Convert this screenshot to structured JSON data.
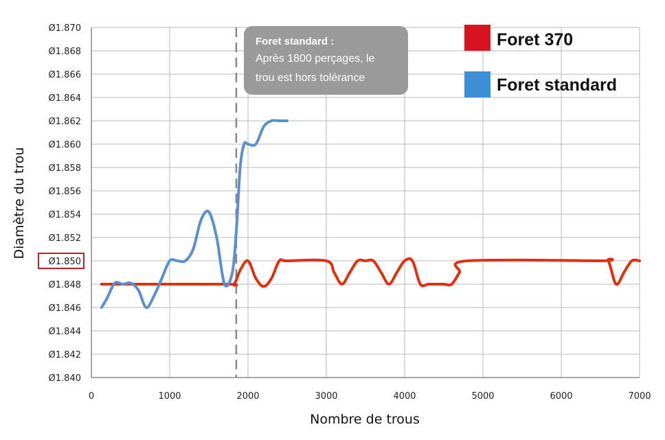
{
  "chart_data": {
    "type": "line",
    "xlabel": "Nombre de trous",
    "ylabel": "Diamètre du trou",
    "xlim": [
      0,
      7000
    ],
    "ylim": [
      1.84,
      1.87
    ],
    "x_ticks": [
      "0",
      "1000",
      "2000",
      "3000",
      "4000",
      "5000",
      "6000",
      "7000"
    ],
    "y_ticks": [
      "Ø1.840",
      "Ø1.842",
      "Ø1.844",
      "Ø1.846",
      "Ø1.848",
      "Ø1.850",
      "Ø1.852",
      "Ø1.854",
      "Ø1.856",
      "Ø1.858",
      "Ø1.860",
      "Ø1.862",
      "Ø1.864",
      "Ø1.866",
      "Ø1.868",
      "Ø1.870"
    ],
    "highlighted_y_tick": "Ø1.850",
    "grid": true,
    "legend_position": "top-right",
    "vline_x": 1850,
    "annotation": {
      "title": "Foret standard :",
      "lines": [
        "Après 1800 perçages, le",
        "trou est hors tolérance"
      ]
    },
    "series": [
      {
        "name": "Foret 370",
        "color": "#e03010",
        "x": [
          130,
          1700,
          1820,
          1900,
          2000,
          2100,
          2200,
          2300,
          2400,
          2500,
          3000,
          3100,
          3200,
          3300,
          3400,
          3500,
          3600,
          3700,
          3800,
          3900,
          4000,
          4100,
          4200,
          4300,
          4400,
          4500,
          4600,
          4700,
          4800,
          6500,
          6600,
          6700,
          6800,
          6900,
          7000
        ],
        "values": [
          1.848,
          1.848,
          1.848,
          1.8492,
          1.85,
          1.8485,
          1.8478,
          1.8485,
          1.85,
          1.85,
          1.85,
          1.849,
          1.848,
          1.849,
          1.85,
          1.85,
          1.85,
          1.849,
          1.848,
          1.849,
          1.85,
          1.85,
          1.848,
          1.848,
          1.848,
          1.848,
          1.848,
          1.849,
          1.85,
          1.85,
          1.85,
          1.848,
          1.849,
          1.85,
          1.85
        ]
      },
      {
        "name": "Foret standard",
        "color": "#5b8fd2",
        "x": [
          130,
          200,
          300,
          400,
          500,
          600,
          700,
          800,
          900,
          1000,
          1100,
          1200,
          1300,
          1400,
          1500,
          1600,
          1700,
          1800,
          1850,
          1900,
          1950,
          2000,
          2100,
          2200,
          2300,
          2400,
          2500
        ],
        "values": [
          1.846,
          1.8468,
          1.8481,
          1.848,
          1.8481,
          1.8475,
          1.846,
          1.847,
          1.8485,
          1.85,
          1.85,
          1.85,
          1.851,
          1.8535,
          1.8542,
          1.852,
          1.848,
          1.849,
          1.8525,
          1.858,
          1.86,
          1.86,
          1.86,
          1.8615,
          1.862,
          1.862,
          1.862
        ]
      }
    ]
  }
}
